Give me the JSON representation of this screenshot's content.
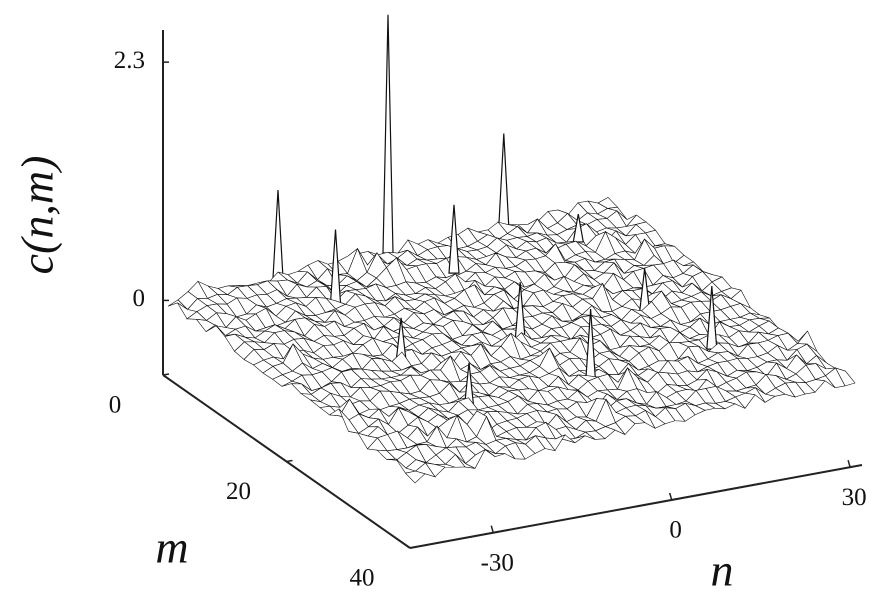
{
  "chart_data": {
    "type": "surface3d",
    "zlabel": "c(n,m)",
    "xlabel": "n",
    "ylabel": "m",
    "zlim": [
      -0.72,
      2.61
    ],
    "zticks": [
      0,
      2.3
    ],
    "nlim": [
      -44,
      32
    ],
    "nticks": [
      -30,
      0,
      30
    ],
    "mlim": [
      0,
      40
    ],
    "mticks": [
      0,
      20,
      40
    ],
    "color": "#ffffff",
    "line_color": "#111111",
    "peaks": [
      {
        "n": -6,
        "m": 0,
        "z": 2.27
      },
      {
        "n": -25,
        "m": 0,
        "z": 0.82
      },
      {
        "n": 14,
        "m": 0,
        "z": 0.87
      },
      {
        "n": -22,
        "m": 6.5,
        "z": 0.68
      },
      {
        "n": -1,
        "m": 6,
        "z": 0.63
      },
      {
        "n": -4.5,
        "m": 20,
        "z": 0.53
      },
      {
        "n": -24,
        "m": 19,
        "z": 0.39
      },
      {
        "n": -24,
        "m": 30,
        "z": 0.43
      },
      {
        "n": -3,
        "m": 30,
        "z": 0.68
      },
      {
        "n": 17,
        "m": 20,
        "z": 0.39
      },
      {
        "n": 19,
        "m": 29,
        "z": 0.58
      },
      {
        "n": 21,
        "m": 5.5,
        "z": 0.24
      }
    ]
  }
}
